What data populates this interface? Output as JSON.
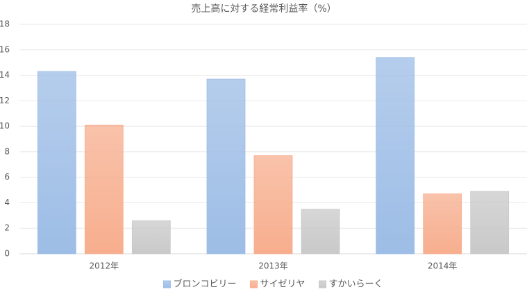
{
  "chart_data": {
    "type": "bar",
    "title": "売上高に対する経常利益率（%）",
    "categories": [
      "2012年",
      "2013年",
      "2014年"
    ],
    "series": [
      {
        "name": "ブロンコビリー",
        "color": "#9dbde6",
        "values": [
          14.3,
          13.7,
          15.4
        ]
      },
      {
        "name": "サイゼリヤ",
        "color": "#f7ae8e",
        "values": [
          10.1,
          7.7,
          4.7
        ]
      },
      {
        "name": "すかいらーく",
        "color": "#c9c9c9",
        "values": [
          2.6,
          3.5,
          4.9
        ]
      }
    ],
    "ylim": [
      0,
      18
    ],
    "yticks": [
      0,
      2,
      4,
      6,
      8,
      10,
      12,
      14,
      16,
      18
    ],
    "grid": true,
    "legend": "bottom"
  }
}
